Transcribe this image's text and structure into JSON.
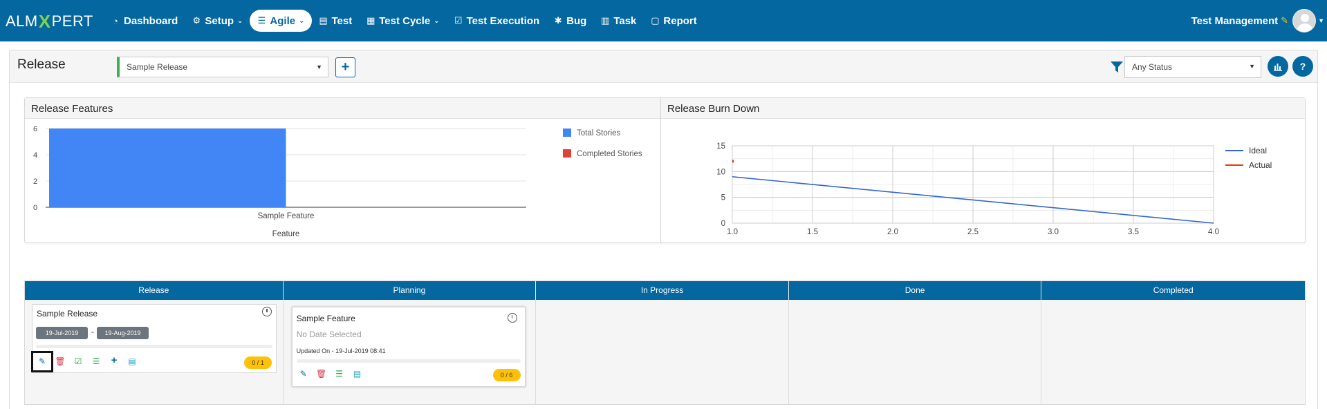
{
  "app": {
    "logo_left": "ALM",
    "logo_x": "X",
    "logo_right": "PERT"
  },
  "nav": {
    "items": [
      {
        "label": "Dashboard",
        "icon": "dashboard-icon",
        "glyph": "◔",
        "caret": false
      },
      {
        "label": "Setup",
        "icon": "cogs-icon",
        "glyph": "⚙",
        "caret": true
      },
      {
        "label": "Agile",
        "icon": "list-icon",
        "glyph": "☰",
        "caret": true,
        "active": true
      },
      {
        "label": "Test",
        "icon": "file-icon",
        "glyph": "▤",
        "caret": false
      },
      {
        "label": "Test Cycle",
        "icon": "table-icon",
        "glyph": "▦",
        "caret": true
      },
      {
        "label": "Test Execution",
        "icon": "check-square-icon",
        "glyph": "☑",
        "caret": false
      },
      {
        "label": "Bug",
        "icon": "bug-icon",
        "glyph": "✱",
        "caret": false
      },
      {
        "label": "Task",
        "icon": "tasks-icon",
        "glyph": "▥",
        "caret": false
      },
      {
        "label": "Report",
        "icon": "report-icon",
        "glyph": "▢",
        "caret": false
      }
    ],
    "user_label": "Test Management"
  },
  "header": {
    "title": "Release",
    "release_select_value": "Sample Release",
    "status_select_value": "Any Status"
  },
  "features_panel": {
    "title": "Release Features",
    "chart_data": {
      "type": "bar",
      "categories": [
        "Sample Feature"
      ],
      "series": [
        {
          "name": "Total Stories",
          "values": [
            6
          ],
          "color": "#4285f4"
        },
        {
          "name": "Completed Stories",
          "values": [
            0
          ],
          "color": "#db4437"
        }
      ],
      "xlabel": "Feature",
      "ylim": [
        0,
        6
      ],
      "yticks": [
        0,
        2,
        4,
        6
      ],
      "legend": "right"
    }
  },
  "burndown_panel": {
    "title": "Release Burn Down",
    "chart_data": {
      "type": "line",
      "xlim": [
        1.0,
        4.0
      ],
      "ylim": [
        0,
        15
      ],
      "xticks": [
        "1.0",
        "1.5",
        "2.0",
        "2.5",
        "3.0",
        "3.5",
        "4.0"
      ],
      "yticks": [
        0,
        5,
        10,
        15
      ],
      "series": [
        {
          "name": "Ideal",
          "color": "#3366cc",
          "points": [
            [
              1.0,
              9
            ],
            [
              4.0,
              0
            ]
          ]
        },
        {
          "name": "Actual",
          "color": "#dc3912",
          "points": [
            [
              1.0,
              12
            ]
          ]
        }
      ],
      "grid": true,
      "legend": "right"
    }
  },
  "board": {
    "columns": [
      "Release",
      "Planning",
      "In Progress",
      "Done",
      "Completed"
    ],
    "release_card": {
      "title": "Sample Release",
      "start_date": "19-Jul-2019",
      "dash": "-",
      "end_date": "19-Aug-2019",
      "count": "0 / 1",
      "progress": 0
    },
    "feature_card": {
      "title": "Sample Feature",
      "date_text": "No Date Selected",
      "updated": "Updated On - 19-Jul-2019 08:41",
      "count": "0 / 6",
      "progress": 0
    }
  },
  "colors": {
    "primary": "#04679f",
    "edit": "#04679f",
    "delete": "#dc3545",
    "success": "#28a745",
    "badge": "#ffc107"
  }
}
